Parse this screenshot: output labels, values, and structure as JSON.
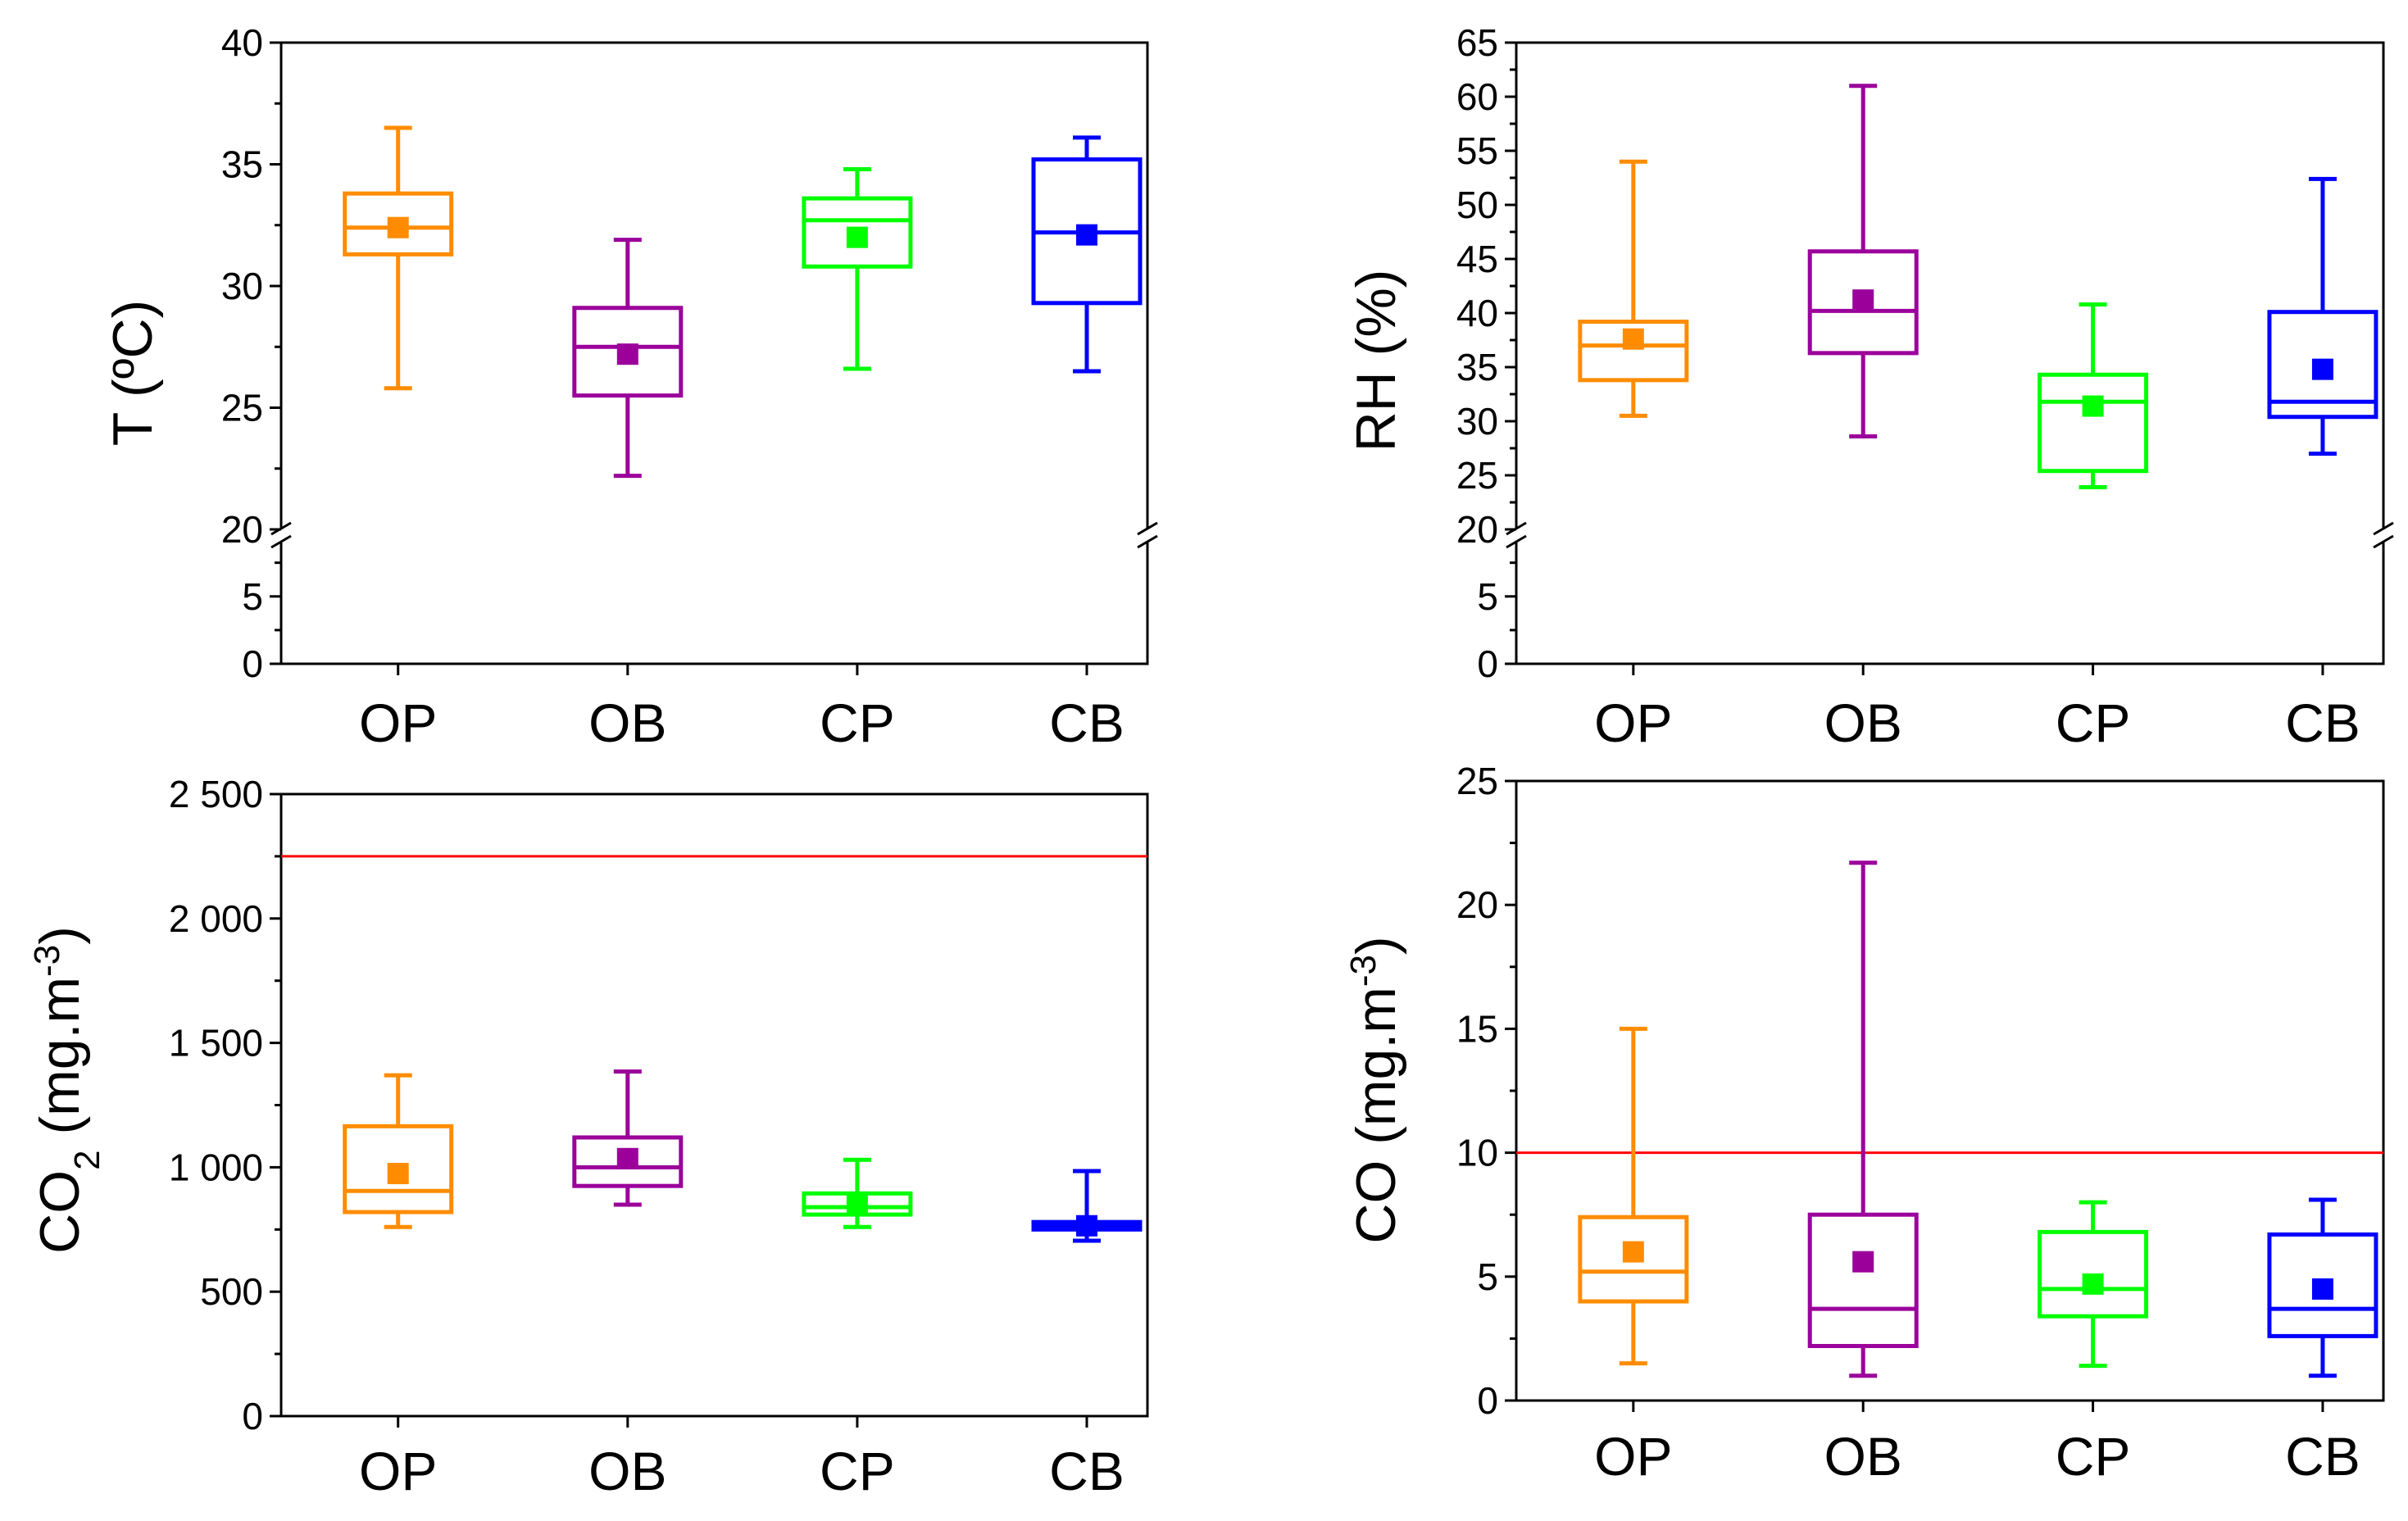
{
  "chart_data": [
    {
      "type": "box",
      "title": "",
      "xlabel": "",
      "ylabel": "T (ºC)",
      "y_broken": true,
      "break_at": 20,
      "y_ticks_lower": [
        "0",
        "5"
      ],
      "y_ticks_upper": [
        "20",
        "25",
        "30",
        "35",
        "40"
      ],
      "lower_range": [
        0,
        9
      ],
      "upper_range": [
        20,
        40
      ],
      "categories": [
        "OP",
        "OB",
        "CP",
        "CB"
      ],
      "boxes": [
        {
          "name": "OP",
          "color": "#ff8c00",
          "min": 25.8,
          "q1": 31.3,
          "median": 32.4,
          "q3": 33.8,
          "max": 36.5,
          "mean": 32.4
        },
        {
          "name": "OB",
          "color": "#9b009b",
          "min": 22.2,
          "q1": 25.5,
          "median": 27.5,
          "q3": 29.1,
          "max": 31.9,
          "mean": 27.2
        },
        {
          "name": "CP",
          "color": "#00ff00",
          "min": 26.6,
          "q1": 30.8,
          "median": 32.7,
          "q3": 33.6,
          "max": 34.8,
          "mean": 32.0
        },
        {
          "name": "CB",
          "color": "#0000ff",
          "min": 26.5,
          "q1": 29.3,
          "median": 32.2,
          "q3": 35.2,
          "max": 36.1,
          "mean": 32.1
        }
      ]
    },
    {
      "type": "box",
      "title": "",
      "xlabel": "",
      "ylabel": "RH (%)",
      "y_broken": true,
      "break_at": 20,
      "y_ticks_lower": [
        "0",
        "5"
      ],
      "y_ticks_upper": [
        "20",
        "25",
        "30",
        "35",
        "40",
        "45",
        "50",
        "55",
        "60",
        "65"
      ],
      "lower_range": [
        0,
        9
      ],
      "upper_range": [
        20,
        65
      ],
      "categories": [
        "OP",
        "OB",
        "CP",
        "CB"
      ],
      "boxes": [
        {
          "name": "OP",
          "color": "#ff8c00",
          "min": 30.5,
          "q1": 33.8,
          "median": 37.0,
          "q3": 39.2,
          "max": 54.0,
          "mean": 37.6
        },
        {
          "name": "OB",
          "color": "#9b009b",
          "min": 28.6,
          "q1": 36.3,
          "median": 40.2,
          "q3": 45.7,
          "max": 61.0,
          "mean": 41.2
        },
        {
          "name": "CP",
          "color": "#00ff00",
          "min": 23.9,
          "q1": 25.4,
          "median": 31.8,
          "q3": 34.3,
          "max": 40.8,
          "mean": 31.4
        },
        {
          "name": "CB",
          "color": "#0000ff",
          "min": 27.0,
          "q1": 30.4,
          "median": 31.8,
          "q3": 40.1,
          "max": 52.4,
          "mean": 34.8
        }
      ]
    },
    {
      "type": "box",
      "title": "",
      "xlabel": "",
      "ylabel": "CO2 (mg.m-3)",
      "ylabel_parts": {
        "main": "CO",
        "sub": "2",
        "unit_open": " (mg.m",
        "sup": "-3",
        "unit_close": ")"
      },
      "y_broken": false,
      "ylim": [
        0,
        2500
      ],
      "y_ticks": [
        {
          "value": 0,
          "label": "0"
        },
        {
          "value": 500,
          "label": "500"
        },
        {
          "value": 1000,
          "label": "1 000"
        },
        {
          "value": 1500,
          "label": "1 500"
        },
        {
          "value": 2000,
          "label": "2 000"
        },
        {
          "value": 2500,
          "label": "2 500"
        }
      ],
      "limit_line": {
        "value": 2250,
        "color": "#ff0000"
      },
      "categories": [
        "OP",
        "OB",
        "CP",
        "CB"
      ],
      "boxes": [
        {
          "name": "OP",
          "color": "#ff8c00",
          "min": 760,
          "q1": 820,
          "median": 905,
          "q3": 1165,
          "max": 1370,
          "mean": 975
        },
        {
          "name": "OB",
          "color": "#9b009b",
          "min": 850,
          "q1": 925,
          "median": 1000,
          "q3": 1120,
          "max": 1385,
          "mean": 1035
        },
        {
          "name": "CP",
          "color": "#00ff00",
          "min": 760,
          "q1": 810,
          "median": 840,
          "q3": 895,
          "max": 1030,
          "mean": 860
        },
        {
          "name": "CB",
          "color": "#0000ff",
          "min": 705,
          "q1": 750,
          "median": 765,
          "q3": 780,
          "max": 985,
          "mean": 765
        }
      ]
    },
    {
      "type": "box",
      "title": "",
      "xlabel": "",
      "ylabel": "CO (mg.m-3)",
      "ylabel_parts": {
        "main": "CO",
        "sub": "",
        "unit_open": " (mg.m",
        "sup": "-3",
        "unit_close": ")"
      },
      "y_broken": false,
      "ylim": [
        0,
        25
      ],
      "y_ticks": [
        {
          "value": 0,
          "label": "0"
        },
        {
          "value": 5,
          "label": "5"
        },
        {
          "value": 10,
          "label": "10"
        },
        {
          "value": 15,
          "label": "15"
        },
        {
          "value": 20,
          "label": "20"
        },
        {
          "value": 25,
          "label": "25"
        }
      ],
      "limit_line": {
        "value": 10,
        "color": "#ff0000"
      },
      "categories": [
        "OP",
        "OB",
        "CP",
        "CB"
      ],
      "boxes": [
        {
          "name": "OP",
          "color": "#ff8c00",
          "min": 1.5,
          "q1": 4.0,
          "median": 5.2,
          "q3": 7.4,
          "max": 15.0,
          "mean": 6.0
        },
        {
          "name": "OB",
          "color": "#9b009b",
          "min": 1.0,
          "q1": 2.2,
          "median": 3.7,
          "q3": 7.5,
          "max": 21.7,
          "mean": 5.6
        },
        {
          "name": "CP",
          "color": "#00ff00",
          "min": 1.4,
          "q1": 3.4,
          "median": 4.5,
          "q3": 6.8,
          "max": 8.0,
          "mean": 4.7
        },
        {
          "name": "CB",
          "color": "#0000ff",
          "min": 1.0,
          "q1": 2.6,
          "median": 3.7,
          "q3": 6.7,
          "max": 8.1,
          "mean": 4.5
        }
      ]
    }
  ]
}
